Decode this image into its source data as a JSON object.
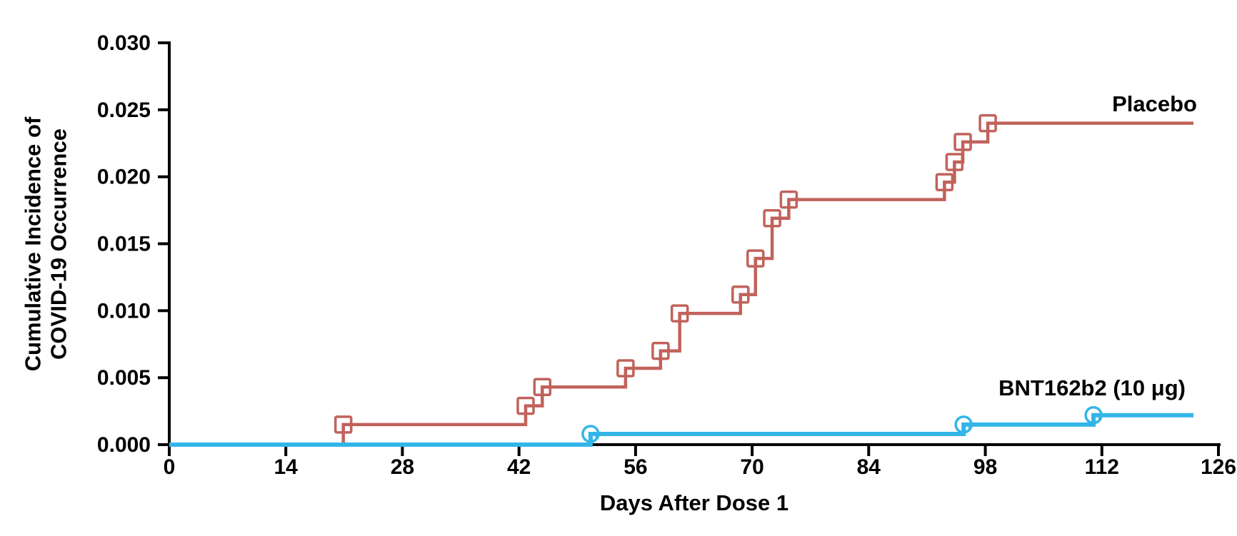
{
  "chart_data": {
    "type": "line",
    "subtype": "step-cumulative-incidence",
    "title": "",
    "xlabel": "Days After Dose 1",
    "ylabel_lines": [
      "Cumulative Incidence of",
      "COVID-19 Occurrence"
    ],
    "xlim": [
      0,
      126
    ],
    "ylim": [
      0,
      0.03
    ],
    "grid": false,
    "legend_position": "inline-labels-at-line-ends",
    "xtick_values": [
      0,
      14,
      28,
      42,
      56,
      70,
      84,
      98,
      112,
      126
    ],
    "xtick_labels": [
      "0",
      "14",
      "28",
      "42",
      "56",
      "70",
      "84",
      "98",
      "112",
      "126"
    ],
    "ytick_values": [
      0.0,
      0.005,
      0.01,
      0.015,
      0.02,
      0.025,
      0.03
    ],
    "ytick_labels": [
      "0.000",
      "0.005",
      "0.010",
      "0.015",
      "0.020",
      "0.025",
      "0.030"
    ],
    "axis_color": "#000000",
    "series": [
      {
        "name": "Placebo",
        "color": "#C1625B",
        "marker": "square",
        "start_day": 0,
        "start_value": 0.0,
        "end_day": 123,
        "events": [
          {
            "day": 20.9,
            "value": 0.0015
          },
          {
            "day": 42.8,
            "value": 0.0029
          },
          {
            "day": 44.8,
            "value": 0.0043
          },
          {
            "day": 54.8,
            "value": 0.0057
          },
          {
            "day": 59.0,
            "value": 0.007
          },
          {
            "day": 61.3,
            "value": 0.0098
          },
          {
            "day": 68.6,
            "value": 0.0112
          },
          {
            "day": 70.4,
            "value": 0.0139
          },
          {
            "day": 72.4,
            "value": 0.0169
          },
          {
            "day": 74.4,
            "value": 0.0183
          },
          {
            "day": 93.1,
            "value": 0.0196
          },
          {
            "day": 94.3,
            "value": 0.0211
          },
          {
            "day": 95.3,
            "value": 0.0226
          },
          {
            "day": 98.3,
            "value": 0.024
          }
        ]
      },
      {
        "name": "BNT162b2 (10 μg)",
        "color": "#33B5E8",
        "marker": "circle",
        "start_day": 0,
        "start_value": 0.0,
        "end_day": 123,
        "events": [
          {
            "day": 50.6,
            "value": 0.0008
          },
          {
            "day": 95.4,
            "value": 0.0015
          },
          {
            "day": 111.0,
            "value": 0.0022
          }
        ]
      }
    ]
  }
}
